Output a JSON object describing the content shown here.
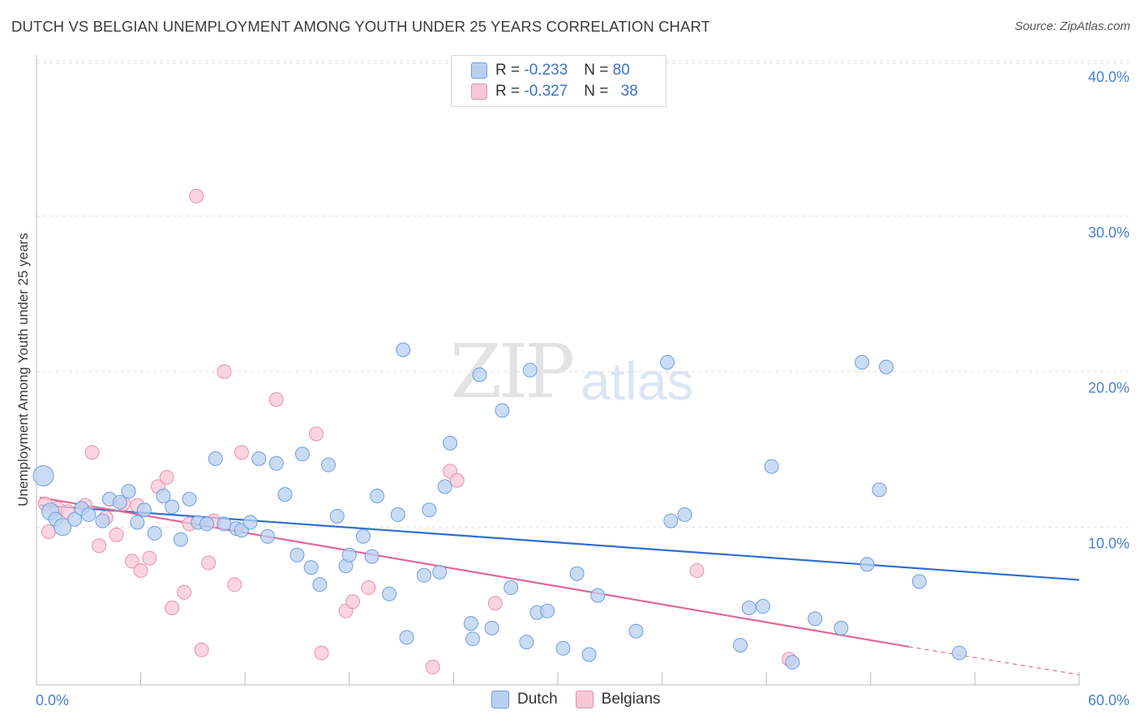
{
  "title": "DUTCH VS BELGIAN UNEMPLOYMENT AMONG YOUTH UNDER 25 YEARS CORRELATION CHART",
  "source": "Source: ZipAtlas.com",
  "watermark": {
    "zip": "ZIP",
    "atlas": "atlas"
  },
  "legend": {
    "dutch": {
      "r_label": "R =",
      "r_value": "-0.233",
      "n_label": "N =",
      "n_value": "80"
    },
    "belgians": {
      "r_label": "R =",
      "r_value": "-0.327",
      "n_label": "N =",
      "n_value": "38"
    }
  },
  "bottom_legend": {
    "dutch": "Dutch",
    "belgians": "Belgians"
  },
  "colors": {
    "dutch_fill": "#b8d0f0",
    "dutch_stroke": "#6e9ede",
    "dutch_line": "#2f6fcf",
    "belgian_fill": "#f8c7d6",
    "belgian_stroke": "#e98fab",
    "belgian_line": "#e0679a",
    "tick_label": "#4a7fd0",
    "grid": "#e0e0e0"
  },
  "chart_data": {
    "type": "scatter",
    "ylabel": "Unemployment Among Youth under 25 years",
    "xlim": [
      0,
      60
    ],
    "ylim": [
      0,
      40
    ],
    "x_tick_labels": [
      "0.0%",
      "60.0%"
    ],
    "y_ticks": [
      10,
      20,
      30,
      40
    ],
    "y_tick_labels": [
      "10.0%",
      "20.0%",
      "30.0%",
      "40.0%"
    ],
    "grid": "horizontal dashed",
    "series": [
      {
        "name": "Dutch",
        "points": [
          [
            0.4,
            13.3
          ],
          [
            0.8,
            11.0
          ],
          [
            1.1,
            10.5
          ],
          [
            1.5,
            10.0
          ],
          [
            2.2,
            10.5
          ],
          [
            2.6,
            11.2
          ],
          [
            3.0,
            10.8
          ],
          [
            3.8,
            10.4
          ],
          [
            4.2,
            11.8
          ],
          [
            4.8,
            11.6
          ],
          [
            5.3,
            12.3
          ],
          [
            5.8,
            10.3
          ],
          [
            6.2,
            11.1
          ],
          [
            6.8,
            9.6
          ],
          [
            7.3,
            12.0
          ],
          [
            7.8,
            11.3
          ],
          [
            8.3,
            9.2
          ],
          [
            8.8,
            11.8
          ],
          [
            9.3,
            10.3
          ],
          [
            9.8,
            10.2
          ],
          [
            10.3,
            14.4
          ],
          [
            10.8,
            10.2
          ],
          [
            11.5,
            9.9
          ],
          [
            11.8,
            9.8
          ],
          [
            12.3,
            10.3
          ],
          [
            12.8,
            14.4
          ],
          [
            13.3,
            9.4
          ],
          [
            13.8,
            14.1
          ],
          [
            14.3,
            12.1
          ],
          [
            15.0,
            8.2
          ],
          [
            15.3,
            14.7
          ],
          [
            15.8,
            7.4
          ],
          [
            16.3,
            6.3
          ],
          [
            16.8,
            14.0
          ],
          [
            17.3,
            10.7
          ],
          [
            17.8,
            7.5
          ],
          [
            18.0,
            8.2
          ],
          [
            18.8,
            9.4
          ],
          [
            19.3,
            8.1
          ],
          [
            19.6,
            12.0
          ],
          [
            20.3,
            5.7
          ],
          [
            20.8,
            10.8
          ],
          [
            21.1,
            21.4
          ],
          [
            21.3,
            2.9
          ],
          [
            22.3,
            6.9
          ],
          [
            22.6,
            11.1
          ],
          [
            23.2,
            7.1
          ],
          [
            23.5,
            12.6
          ],
          [
            23.8,
            15.4
          ],
          [
            25.0,
            3.8
          ],
          [
            25.1,
            2.8
          ],
          [
            25.5,
            19.8
          ],
          [
            26.2,
            3.5
          ],
          [
            26.8,
            17.5
          ],
          [
            27.3,
            6.1
          ],
          [
            28.2,
            2.6
          ],
          [
            28.4,
            20.1
          ],
          [
            28.8,
            4.5
          ],
          [
            29.4,
            4.6
          ],
          [
            30.3,
            2.2
          ],
          [
            31.1,
            7.0
          ],
          [
            31.8,
            1.8
          ],
          [
            32.3,
            5.6
          ],
          [
            34.5,
            3.3
          ],
          [
            36.3,
            20.6
          ],
          [
            36.5,
            10.4
          ],
          [
            37.3,
            10.8
          ],
          [
            40.5,
            2.4
          ],
          [
            41.0,
            4.8
          ],
          [
            41.8,
            4.9
          ],
          [
            42.3,
            13.9
          ],
          [
            43.5,
            1.3
          ],
          [
            44.8,
            4.1
          ],
          [
            46.3,
            3.5
          ],
          [
            47.5,
            20.6
          ],
          [
            47.8,
            7.6
          ],
          [
            48.5,
            12.4
          ],
          [
            48.9,
            20.3
          ],
          [
            50.8,
            6.5
          ],
          [
            53.1,
            1.9
          ]
        ],
        "trend": {
          "x": [
            0.2,
            60
          ],
          "y": [
            11.4,
            6.6
          ]
        }
      },
      {
        "name": "Belgians",
        "points": [
          [
            0.5,
            11.5
          ],
          [
            0.7,
            9.7
          ],
          [
            1.2,
            11.2
          ],
          [
            1.8,
            11.0
          ],
          [
            2.8,
            11.4
          ],
          [
            3.2,
            14.8
          ],
          [
            3.6,
            8.8
          ],
          [
            4.0,
            10.6
          ],
          [
            4.6,
            9.5
          ],
          [
            5.0,
            11.5
          ],
          [
            5.5,
            7.8
          ],
          [
            5.8,
            11.4
          ],
          [
            6.0,
            7.2
          ],
          [
            6.5,
            8.0
          ],
          [
            7.0,
            12.6
          ],
          [
            7.5,
            13.2
          ],
          [
            7.8,
            4.8
          ],
          [
            8.5,
            5.8
          ],
          [
            8.8,
            10.2
          ],
          [
            9.2,
            31.3
          ],
          [
            9.5,
            2.1
          ],
          [
            9.9,
            7.7
          ],
          [
            10.2,
            10.4
          ],
          [
            10.8,
            20.0
          ],
          [
            11.4,
            6.3
          ],
          [
            11.8,
            14.8
          ],
          [
            13.8,
            18.2
          ],
          [
            16.1,
            16.0
          ],
          [
            16.4,
            1.9
          ],
          [
            17.8,
            4.6
          ],
          [
            18.2,
            5.2
          ],
          [
            19.1,
            6.1
          ],
          [
            22.8,
            1.0
          ],
          [
            23.8,
            13.6
          ],
          [
            24.2,
            13.0
          ],
          [
            26.4,
            5.1
          ],
          [
            38.0,
            7.2
          ],
          [
            43.3,
            1.5
          ]
        ],
        "trend": {
          "x": [
            0.2,
            50.2
          ],
          "y": [
            11.9,
            2.3
          ]
        },
        "trend_dashed": {
          "x": [
            50.2,
            60
          ],
          "y": [
            2.3,
            0.5
          ]
        }
      }
    ]
  }
}
